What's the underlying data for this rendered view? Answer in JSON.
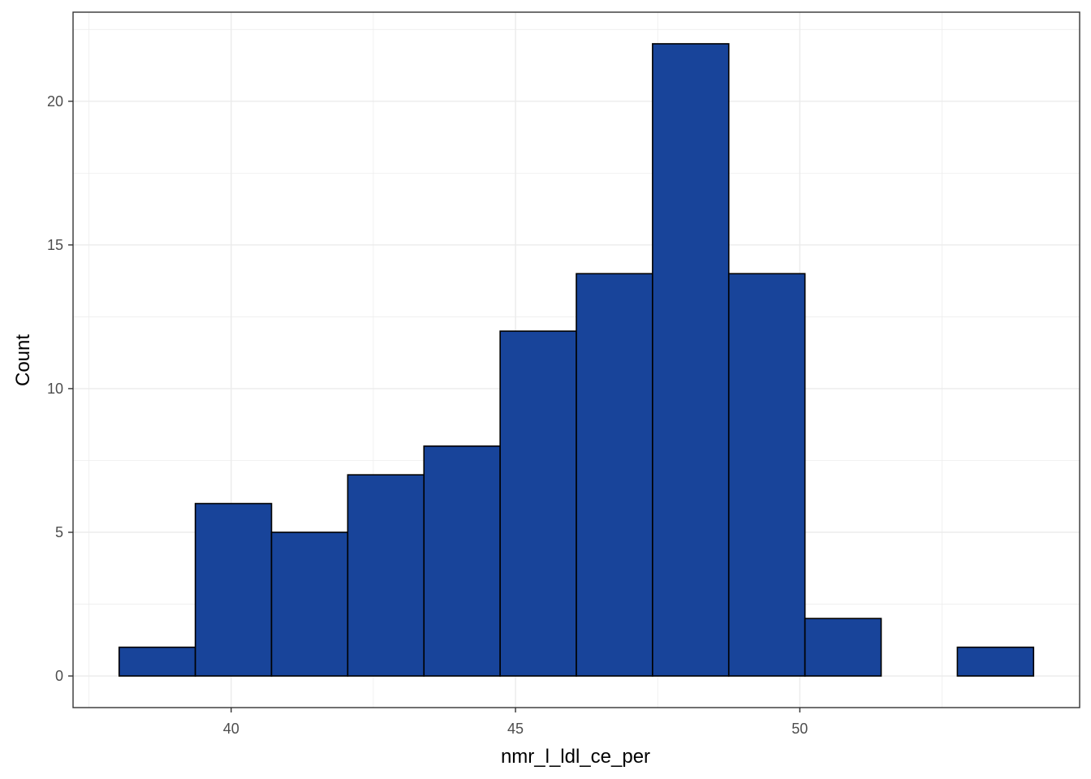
{
  "chart_data": {
    "type": "bar",
    "subtype": "histogram",
    "xlabel": "nmr_l_ldl_ce_per",
    "ylabel": "Count",
    "bin_width": 1.34,
    "bins": [
      {
        "x_min": 38.03,
        "x_max": 39.37,
        "count": 1
      },
      {
        "x_min": 39.37,
        "x_max": 40.71,
        "count": 6
      },
      {
        "x_min": 40.71,
        "x_max": 42.05,
        "count": 5
      },
      {
        "x_min": 42.05,
        "x_max": 43.39,
        "count": 7
      },
      {
        "x_min": 43.39,
        "x_max": 44.73,
        "count": 8
      },
      {
        "x_min": 44.73,
        "x_max": 46.07,
        "count": 12
      },
      {
        "x_min": 46.07,
        "x_max": 47.41,
        "count": 14
      },
      {
        "x_min": 47.41,
        "x_max": 48.75,
        "count": 22
      },
      {
        "x_min": 48.75,
        "x_max": 50.09,
        "count": 14
      },
      {
        "x_min": 50.09,
        "x_max": 51.43,
        "count": 2
      },
      {
        "x_min": 51.43,
        "x_max": 52.77,
        "count": 0
      },
      {
        "x_min": 52.77,
        "x_max": 54.11,
        "count": 1
      }
    ],
    "xlim": [
      37.22,
      54.92
    ],
    "ylim": [
      -1.1,
      23.1
    ],
    "x_ticks": [
      40,
      45,
      50
    ],
    "x_tick_labels": [
      "40",
      "45",
      "50"
    ],
    "y_ticks": [
      0,
      5,
      10,
      15,
      20
    ],
    "y_tick_labels": [
      "0",
      "5",
      "10",
      "15",
      "20"
    ],
    "grid": true,
    "bar_fill": "#18449A",
    "bar_outline": "#000000",
    "panel_border": "#333333",
    "grid_color": "#ebebeb"
  }
}
